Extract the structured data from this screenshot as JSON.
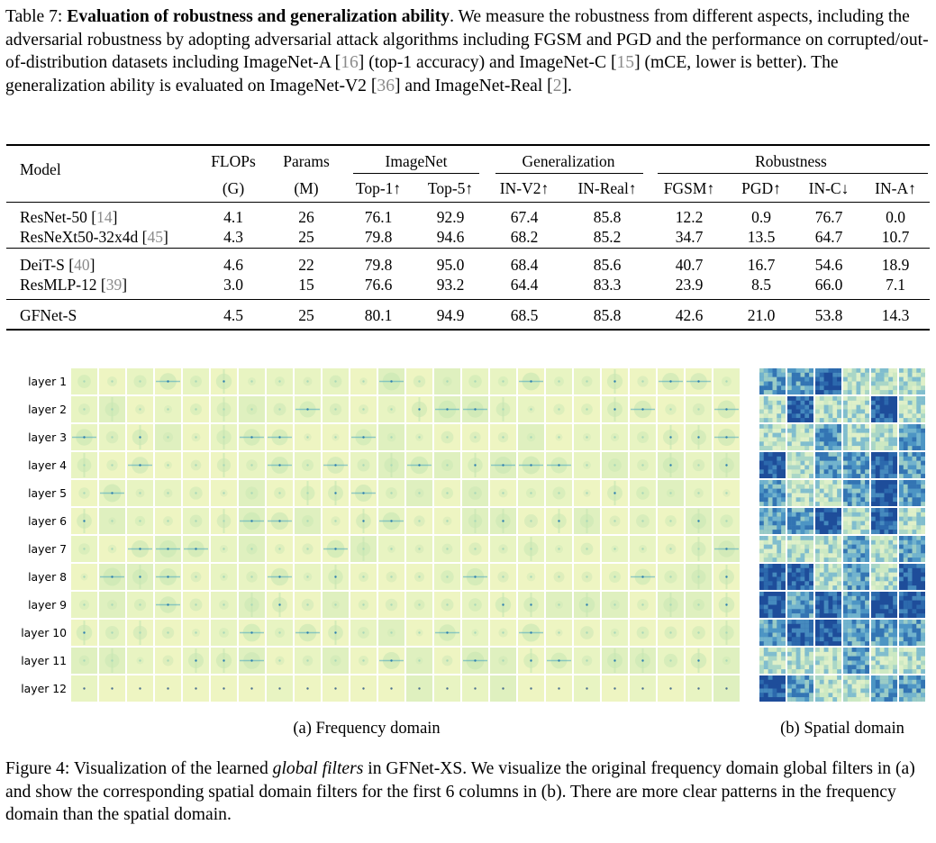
{
  "table": {
    "caption": {
      "prefix": "Table 7: ",
      "title": "Evaluation of robustness and generalization ability",
      "t1": ". We measure the robustness from different aspects, including the adversarial robustness by adopting adversarial attack algorithms including FGSM and PGD and the performance on corrupted/out-of-distribution datasets including ImageNet-A [",
      "r1": "16",
      "t2": "] (top-1 accuracy) and ImageNet-C [",
      "r2": "15",
      "t3": "] (mCE, lower is better). The generalization ability is evaluated on ImageNet-V2 [",
      "r3": "36",
      "t4": "] and ImageNet-Real [",
      "r4": "2",
      "t5": "]."
    },
    "headers": {
      "model": "Model",
      "flops": "FLOPs",
      "flops_unit": "(G)",
      "params": "Params",
      "params_unit": "(M)",
      "imagenet": "ImageNet",
      "generalization": "Generalization",
      "robustness": "Robustness",
      "top1": "Top-1↑",
      "top5": "Top-5↑",
      "inv2": "IN-V2↑",
      "inreal": "IN-Real↑",
      "fgsm": "FGSM↑",
      "pgd": "PGD↑",
      "inc": "IN-C↓",
      "ina": "IN-A↑"
    },
    "rows": [
      {
        "name": "ResNet-50 [",
        "ref": "14",
        "close": "]",
        "values": [
          "4.1",
          "26",
          "76.1",
          "92.9",
          "67.4",
          "85.8",
          "12.2",
          "0.9",
          "76.7",
          "0.0"
        ]
      },
      {
        "name": "ResNeXt50-32x4d [",
        "ref": "45",
        "close": "]",
        "values": [
          "4.3",
          "25",
          "79.8",
          "94.6",
          "68.2",
          "85.2",
          "34.7",
          "13.5",
          "64.7",
          "10.7"
        ]
      },
      {
        "name": "DeiT-S [",
        "ref": "40",
        "close": "]",
        "values": [
          "4.6",
          "22",
          "79.8",
          "95.0",
          "68.4",
          "85.6",
          "40.7",
          "16.7",
          "54.6",
          "18.9"
        ]
      },
      {
        "name": "ResMLP-12 [",
        "ref": "39",
        "close": "]",
        "values": [
          "3.0",
          "15",
          "76.6",
          "93.2",
          "64.4",
          "83.3",
          "23.9",
          "8.5",
          "66.0",
          "7.1"
        ]
      },
      {
        "name": "GFNet-S",
        "ref": "",
        "close": "",
        "values": [
          "4.5",
          "25",
          "80.1",
          "94.9",
          "68.5",
          "85.8",
          "42.6",
          "21.0",
          "53.8",
          "14.3"
        ]
      }
    ]
  },
  "figure": {
    "layer_labels": [
      "layer 1",
      "layer 2",
      "layer 3",
      "layer 4",
      "layer 5",
      "layer 6",
      "layer 7",
      "layer 8",
      "layer 9",
      "layer 10",
      "layer 11",
      "layer 12"
    ],
    "freq_caption": "(a) Frequency domain",
    "spatial_caption": "(b) Spatial domain",
    "freq_columns": 24,
    "spatial_columns": 6,
    "colors": {
      "freq_bg": "#eef5c2",
      "freq_mid": "#c9e7b4",
      "freq_strong": "#3aa0c2",
      "spatial_dark": "#1f4e9a",
      "spatial_light": "#e2f2c8"
    },
    "caption": {
      "prefix": "Figure 4: Visualization of the learned ",
      "italic": "global filters",
      "rest": " in GFNet-XS. We visualize the original frequency domain global filters in (a) and show the corresponding spatial domain filters for the first 6 columns in (b). There are more clear patterns in the frequency domain than the spatial domain."
    }
  }
}
